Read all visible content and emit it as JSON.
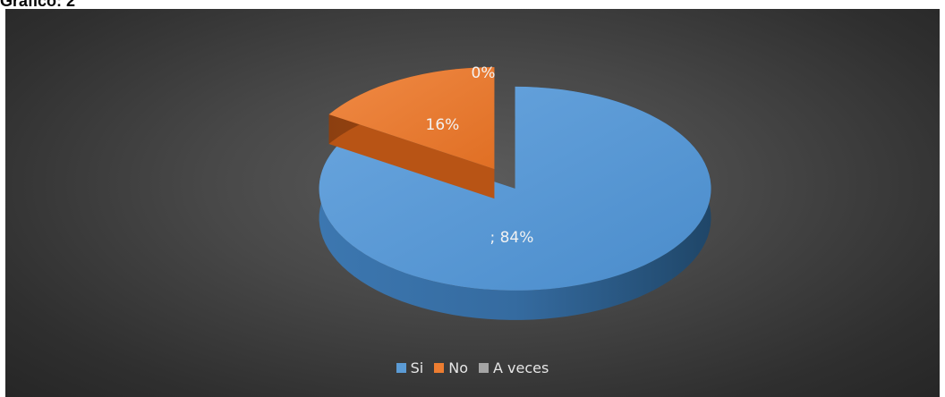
{
  "heading": "Gráfico: 2",
  "chart_data": {
    "type": "pie",
    "title": "",
    "categories": [
      "Si",
      "No",
      "A veces"
    ],
    "values": [
      84,
      16,
      0
    ],
    "data_labels": [
      "; 84%",
      "16%",
      "0%"
    ],
    "colors": [
      "#5b9bd5",
      "#ed7d31",
      "#a5a5a5"
    ],
    "exploded": true,
    "three_d": true,
    "legend_position": "bottom"
  }
}
